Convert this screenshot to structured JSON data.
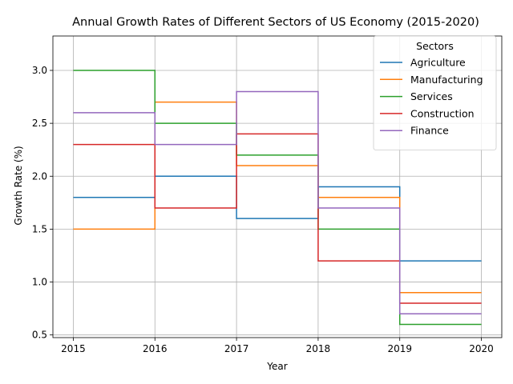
{
  "chart_data": {
    "type": "line",
    "step": "post",
    "title": "Annual Growth Rates of Different Sectors of US Economy (2015-2020)",
    "xlabel": "Year",
    "ylabel": "Growth Rate (%)",
    "x": [
      2015,
      2016,
      2017,
      2018,
      2019,
      2020
    ],
    "xlim": [
      2014.75,
      2020.25
    ],
    "ylim": [
      0.475,
      3.325
    ],
    "xticks": [
      2015,
      2016,
      2017,
      2018,
      2019,
      2020
    ],
    "yticks": [
      0.5,
      1.0,
      1.5,
      2.0,
      2.5,
      3.0
    ],
    "ytick_labels": [
      "0.5",
      "1.0",
      "1.5",
      "2.0",
      "2.5",
      "3.0"
    ],
    "grid": true,
    "legend": {
      "title": "Sectors",
      "placement": "top-right"
    },
    "series": [
      {
        "name": "Agriculture",
        "color": "#1f77b4",
        "values": [
          1.8,
          2.0,
          1.6,
          1.9,
          1.2,
          1.2
        ]
      },
      {
        "name": "Manufacturing",
        "color": "#ff7f0e",
        "values": [
          1.5,
          2.7,
          2.1,
          1.8,
          0.9,
          0.9
        ]
      },
      {
        "name": "Services",
        "color": "#2ca02c",
        "values": [
          3.0,
          2.5,
          2.2,
          1.5,
          0.6,
          0.6
        ]
      },
      {
        "name": "Construction",
        "color": "#d62728",
        "values": [
          2.3,
          1.7,
          2.4,
          1.2,
          0.8,
          0.8
        ]
      },
      {
        "name": "Finance",
        "color": "#9467bd",
        "values": [
          2.6,
          2.3,
          2.8,
          1.7,
          0.7,
          0.7
        ]
      }
    ]
  }
}
